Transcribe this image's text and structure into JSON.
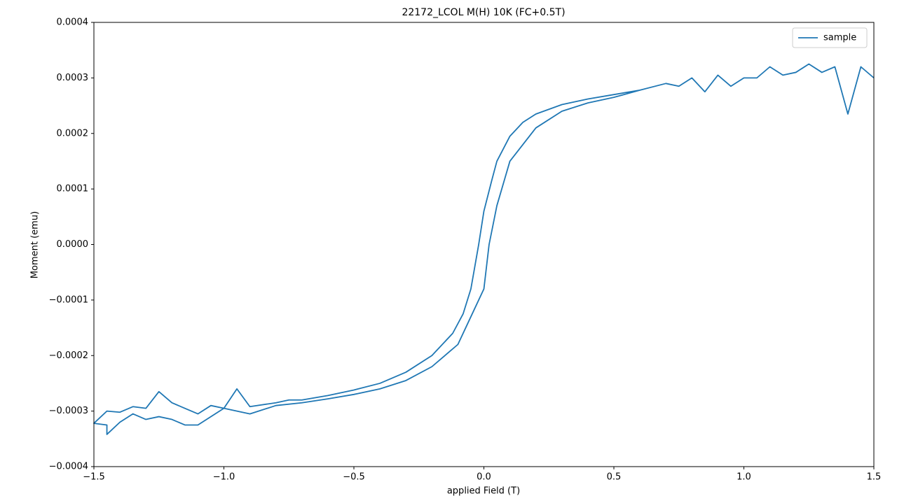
{
  "chart_data": {
    "type": "line",
    "title": "22172_LCOL M(H) 10K (FC+0.5T)",
    "x_label": "applied Field (T)",
    "y_label": "Moment (emu)",
    "x": [
      1.5,
      1.45,
      1.4,
      1.35,
      1.3,
      1.25,
      1.2,
      1.15,
      1.1,
      1.05,
      1.0,
      0.95,
      0.9,
      0.85,
      0.8,
      0.75,
      0.7,
      0.6,
      0.5,
      0.4,
      0.3,
      0.2,
      0.15,
      0.1,
      0.05,
      0.03,
      0,
      -0.02,
      -0.05,
      -0.08,
      -0.12,
      -0.2,
      -0.3,
      -0.4,
      -0.5,
      -0.6,
      -0.7,
      -0.75,
      -0.8,
      -0.9,
      -0.95,
      -1.0,
      -1.05,
      -1.1,
      -1.15,
      -1.2,
      -1.25,
      -1.3,
      -1.35,
      -1.4,
      -1.45,
      -1.5,
      -1.45,
      -1.45,
      -1.4,
      -1.35,
      -1.3,
      -1.25,
      -1.2,
      -1.15,
      -1.1,
      -1.0,
      -0.9,
      -0.8,
      -0.7,
      -0.6,
      -0.5,
      -0.4,
      -0.3,
      -0.2,
      -0.1,
      -0.05,
      0,
      0.02,
      0.05,
      0.1,
      0.2,
      0.3,
      0.4,
      0.5,
      0.6
    ],
    "series": [
      {
        "name": "sample",
        "color": "#1f77b4",
        "values": [
          0.0003,
          0.00032,
          0.000235,
          0.00032,
          0.00031,
          0.000325,
          0.00031,
          0.000305,
          0.00032,
          0.0003,
          0.0003,
          0.000285,
          0.000305,
          0.000275,
          0.0003,
          0.000285,
          0.00029,
          0.000278,
          0.00027,
          0.000262,
          0.000252,
          0.000235,
          0.00022,
          0.000195,
          0.00015,
          0.000115,
          6e-05,
          0,
          -8e-05,
          -0.000125,
          -0.00016,
          -0.0002,
          -0.00023,
          -0.00025,
          -0.000262,
          -0.000272,
          -0.00028,
          -0.00028,
          -0.000285,
          -0.000292,
          -0.00026,
          -0.000295,
          -0.00029,
          -0.000305,
          -0.000295,
          -0.000285,
          -0.000265,
          -0.000295,
          -0.000292,
          -0.000302,
          -0.0003,
          -0.000322,
          -0.000325,
          -0.000342,
          -0.00032,
          -0.000305,
          -0.000315,
          -0.00031,
          -0.000315,
          -0.000325,
          -0.000325,
          -0.000295,
          -0.000305,
          -0.00029,
          -0.000285,
          -0.000278,
          -0.00027,
          -0.00026,
          -0.000245,
          -0.00022,
          -0.00018,
          -0.00013,
          -8e-05,
          0,
          7e-05,
          0.00015,
          0.00021,
          0.00024,
          0.000255,
          0.000265,
          0.000278
        ]
      }
    ],
    "xlim": [
      -1.5,
      1.5
    ],
    "xticks": [
      {
        "value": -1.5,
        "label": "−1.5"
      },
      {
        "value": -1,
        "label": "−1.0"
      },
      {
        "value": -0.5,
        "label": "−0.5"
      },
      {
        "value": 0,
        "label": "0.0"
      },
      0.5,
      {
        "value": 1,
        "label": "1.0"
      },
      1.5
    ],
    "ylim": [
      -0.0004,
      0.0004
    ],
    "yticks": [
      {
        "value": -0.0004,
        "label": "−0.0004"
      },
      {
        "value": -0.0003,
        "label": "−0.0003"
      },
      {
        "value": -0.0002,
        "label": "−0.0002"
      },
      {
        "value": -0.0001,
        "label": "−0.0001"
      },
      {
        "value": 0,
        "label": "0.0000"
      },
      0.0001,
      0.0002,
      0.0003,
      0.0004
    ],
    "grid": false,
    "legend": "upper-right"
  }
}
